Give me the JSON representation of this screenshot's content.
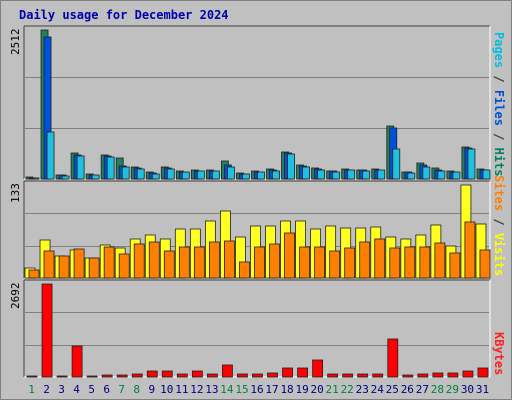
{
  "chart_data": {
    "type": "bar",
    "title": "Daily usage for December 2024",
    "categories": [
      "1",
      "2",
      "3",
      "4",
      "5",
      "6",
      "7",
      "8",
      "9",
      "10",
      "11",
      "12",
      "13",
      "14",
      "15",
      "16",
      "17",
      "18",
      "19",
      "20",
      "21",
      "22",
      "23",
      "24",
      "25",
      "26",
      "27",
      "28",
      "29",
      "30",
      "31"
    ],
    "weekend_days": [
      "1",
      "7",
      "8",
      "14",
      "15",
      "21",
      "22",
      "28",
      "29"
    ],
    "panels": [
      {
        "ymax_label": "2512",
        "ymax": 2512,
        "legend": [
          {
            "text": "Pages",
            "color": "#00c0e0"
          },
          {
            "text": " / ",
            "color": "#404040"
          },
          {
            "text": "Files",
            "color": "#0050e0"
          },
          {
            "text": " / ",
            "color": "#404040"
          },
          {
            "text": "Hits",
            "color": "#008060"
          }
        ],
        "series": [
          {
            "name": "Hits",
            "color": "#208060",
            "values": [
              30,
              2512,
              70,
              430,
              80,
              400,
              360,
              200,
              110,
              200,
              130,
              150,
              150,
              310,
              100,
              130,
              170,
              460,
              240,
              180,
              140,
              170,
              160,
              170,
              890,
              120,
              270,
              180,
              130,
              540,
              170
            ]
          },
          {
            "name": "Files",
            "color": "#0050e0",
            "values": [
              20,
              2400,
              60,
              410,
              70,
              380,
              220,
              180,
              100,
              180,
              120,
              140,
              140,
              240,
              90,
              120,
              150,
              440,
              220,
              170,
              130,
              160,
              150,
              160,
              860,
              110,
              230,
              160,
              120,
              520,
              160
            ]
          },
          {
            "name": "Pages",
            "color": "#20c0e0",
            "values": [
              10,
              800,
              50,
              390,
              60,
              370,
              210,
              170,
              90,
              170,
              110,
              130,
              130,
              200,
              80,
              110,
              140,
              420,
              210,
              160,
              120,
              150,
              140,
              150,
              500,
              100,
              200,
              140,
              110,
              500,
              150
            ]
          }
        ]
      },
      {
        "ymax_label": "133",
        "ymax": 133,
        "legend": [
          {
            "text": "Sites",
            "color": "#ff8000"
          },
          {
            "text": " / ",
            "color": "#404040"
          },
          {
            "text": "Visits",
            "color": "#ffff00"
          }
        ],
        "series": [
          {
            "name": "Visits",
            "color": "#ffff20",
            "values": [
              15,
              55,
              32,
              40,
              28,
              47,
              43,
              56,
              61,
              56,
              70,
              70,
              81,
              96,
              58,
              74,
              74,
              82,
              82,
              70,
              74,
              72,
              72,
              73,
              59,
              56,
              62,
              76,
              46,
              133,
              77
            ]
          },
          {
            "name": "Sites",
            "color": "#ff8000",
            "values": [
              12,
              38,
              32,
              42,
              28,
              44,
              35,
              48,
              51,
              39,
              44,
              44,
              51,
              53,
              23,
              45,
              49,
              65,
              45,
              44,
              39,
              43,
              51,
              56,
              43,
              44,
              44,
              50,
              36,
              80,
              40
            ]
          }
        ]
      },
      {
        "ymax_label": "2692",
        "ymax": 2692,
        "legend": [
          {
            "text": "KBytes",
            "color": "#ff2020"
          }
        ],
        "series": [
          {
            "name": "KBytes",
            "color": "#ff0000",
            "values": [
              20,
              2692,
              20,
              900,
              30,
              60,
              60,
              80,
              160,
              160,
              80,
              160,
              100,
              360,
              80,
              100,
              120,
              270,
              250,
              500,
              80,
              80,
              80,
              80,
              1100,
              60,
              100,
              120,
              120,
              160,
              260
            ]
          }
        ]
      }
    ]
  },
  "colors": {
    "background": "#c0c0c0",
    "plot_bg": "#c0c0c0",
    "weekday_label": "#000080",
    "weekend_label": "#008040"
  }
}
